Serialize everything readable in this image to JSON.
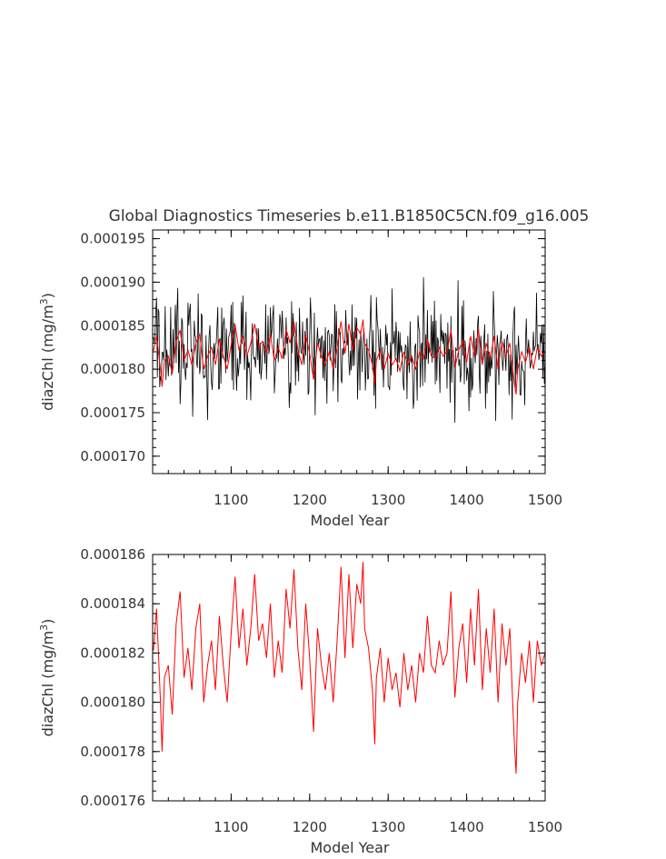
{
  "title": "Global Diagnostics Timeseries b.e11.B1850C5CN.f09_g16.005",
  "colors": {
    "annual": "#000000",
    "smoothed": "#ff0000",
    "axis": "#000000",
    "text": "#333333"
  },
  "chart_data": [
    {
      "type": "line",
      "xlabel": "Model Year",
      "ylabel_main": "diazChl (mg/m",
      "ylabel_sup": "3",
      "ylabel_tail": ")",
      "xlim": [
        1000,
        1500
      ],
      "ylim": [
        0.000168,
        0.000196
      ],
      "xticks": [
        1100,
        1200,
        1300,
        1400,
        1500
      ],
      "xtick_labels": [
        "1100",
        "1200",
        "1300",
        "1400",
        "1500"
      ],
      "yticks": [
        0.00017,
        0.000175,
        0.00018,
        0.000185,
        0.00019,
        0.000195
      ],
      "ytick_labels": [
        "0.000170",
        "0.000175",
        "0.000180",
        "0.000185",
        "0.000190",
        "0.000195"
      ],
      "series": [
        {
          "color": "#000000",
          "style": "high-frequency annual values",
          "x_range": [
            1001,
            1500
          ],
          "typical_range": [
            0.000175,
            0.000189
          ],
          "min": 0.00017,
          "max": 0.000193
        },
        {
          "color": "#ff0000",
          "style": "smoothed",
          "x_range": [
            1001,
            1500
          ],
          "range": [
            0.000177,
            0.000186
          ]
        }
      ]
    },
    {
      "type": "line",
      "xlabel": "Model Year",
      "ylabel_main": "diazChl (mg/m",
      "ylabel_sup": "3",
      "ylabel_tail": ")",
      "xlim": [
        1000,
        1500
      ],
      "ylim": [
        0.000176,
        0.000186
      ],
      "xticks": [
        1100,
        1200,
        1300,
        1400,
        1500
      ],
      "xtick_labels": [
        "1100",
        "1200",
        "1300",
        "1400",
        "1500"
      ],
      "yticks": [
        0.000176,
        0.000178,
        0.00018,
        0.000182,
        0.000184,
        0.000186
      ],
      "ytick_labels": [
        "0.000176",
        "0.000178",
        "0.000180",
        "0.000182",
        "0.000184",
        "0.000186"
      ],
      "series": [
        {
          "color": "#ff0000",
          "style": "smoothed",
          "x": [
            1001,
            1005,
            1010,
            1012,
            1015,
            1020,
            1025,
            1030,
            1035,
            1040,
            1045,
            1050,
            1055,
            1060,
            1065,
            1070,
            1075,
            1080,
            1085,
            1090,
            1095,
            1100,
            1105,
            1110,
            1115,
            1120,
            1125,
            1130,
            1135,
            1140,
            1145,
            1150,
            1155,
            1160,
            1165,
            1170,
            1175,
            1180,
            1185,
            1190,
            1195,
            1200,
            1205,
            1210,
            1215,
            1220,
            1225,
            1230,
            1235,
            1240,
            1245,
            1250,
            1255,
            1260,
            1265,
            1268,
            1270,
            1275,
            1280,
            1283,
            1285,
            1290,
            1295,
            1300,
            1305,
            1310,
            1315,
            1320,
            1325,
            1330,
            1335,
            1340,
            1345,
            1350,
            1355,
            1360,
            1365,
            1370,
            1375,
            1380,
            1385,
            1390,
            1395,
            1400,
            1405,
            1410,
            1415,
            1420,
            1425,
            1430,
            1435,
            1440,
            1445,
            1450,
            1455,
            1458,
            1461,
            1463,
            1465,
            1470,
            1475,
            1480,
            1485,
            1490,
            1495,
            1500
          ],
          "y": [
            0.0001821,
            0.0001838,
            0.00018,
            0.000178,
            0.000181,
            0.0001815,
            0.0001795,
            0.0001832,
            0.0001845,
            0.000181,
            0.0001822,
            0.0001805,
            0.000183,
            0.000184,
            0.00018,
            0.0001815,
            0.0001825,
            0.0001805,
            0.0001835,
            0.0001815,
            0.00018,
            0.0001828,
            0.0001851,
            0.0001822,
            0.0001838,
            0.0001815,
            0.000183,
            0.0001852,
            0.0001825,
            0.0001832,
            0.0001818,
            0.000184,
            0.000181,
            0.0001825,
            0.0001812,
            0.0001846,
            0.000183,
            0.0001854,
            0.0001822,
            0.0001805,
            0.000184,
            0.0001818,
            0.0001788,
            0.000183,
            0.0001815,
            0.0001805,
            0.000182,
            0.00018,
            0.0001825,
            0.0001855,
            0.0001818,
            0.0001852,
            0.0001822,
            0.0001848,
            0.000184,
            0.0001857,
            0.000183,
            0.0001822,
            0.0001805,
            0.0001783,
            0.000181,
            0.0001822,
            0.00018,
            0.0001818,
            0.0001805,
            0.0001812,
            0.0001798,
            0.000182,
            0.0001805,
            0.0001815,
            0.00018,
            0.000182,
            0.0001812,
            0.0001835,
            0.0001815,
            0.0001812,
            0.0001825,
            0.0001815,
            0.000182,
            0.0001845,
            0.0001802,
            0.0001822,
            0.0001832,
            0.0001808,
            0.0001838,
            0.0001815,
            0.0001846,
            0.0001805,
            0.000183,
            0.0001812,
            0.0001838,
            0.00018,
            0.0001832,
            0.0001815,
            0.000183,
            0.0001805,
            0.0001782,
            0.0001771,
            0.00018,
            0.000182,
            0.0001808,
            0.0001825,
            0.00018,
            0.0001825,
            0.0001815,
            0.000182
          ]
        }
      ]
    }
  ]
}
